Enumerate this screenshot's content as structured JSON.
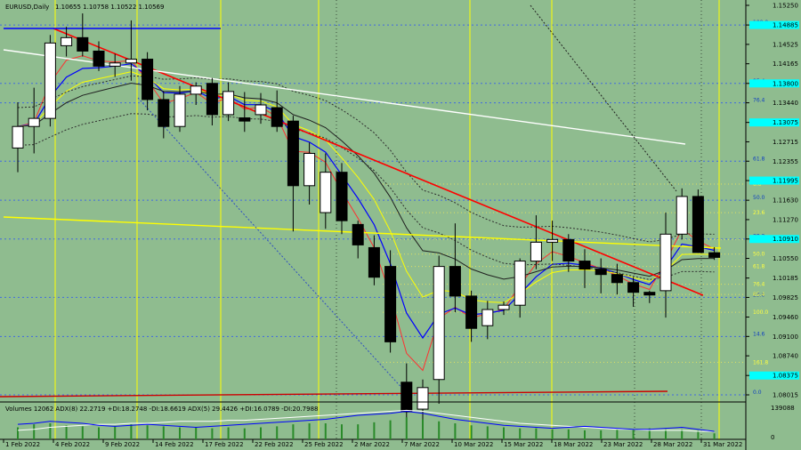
{
  "header": {
    "symbol_info": "EURUSD,Daily",
    "ohlc": "1.10655 1.10758 1.10522 1.10569"
  },
  "volumes_panel": {
    "info": "Volumes 12062  ADX(8) 22.2719 +DI:18.2748 -DI:18.6619  ADX(5) 29.4426 +DI:16.0789 -DI:20.7988",
    "scale_top": "139088",
    "scale_bottom": "0"
  },
  "colors": {
    "background": "#8fbc8f",
    "bull_candle": "#ffffff",
    "bear_candle": "#000000",
    "trend_red": "#ff0000",
    "trend_white": "#ffffff",
    "trend_yellow": "#ffff00",
    "ma_red": "#ff3030",
    "ma_blue": "#0000ff",
    "ma_yellow": "#ffff00",
    "ma_black": "#202020",
    "grid_blue": "#4169e1",
    "current_price_box": "#00ffff"
  },
  "chart_data": {
    "type": "candlestick",
    "title": "EURUSD,Daily",
    "y_ticks": [
      "1.15250",
      "1.14885",
      "1.14525",
      "1.14165",
      "1.13800",
      "1.13440",
      "1.13075",
      "1.12715",
      "1.12355",
      "1.11995",
      "1.11630",
      "1.11270",
      "1.10910",
      "1.10550",
      "1.10185",
      "1.09825",
      "1.09460",
      "1.09100",
      "1.08740",
      "1.08375",
      "1.08015"
    ],
    "highlighted_labels": [
      "1.14885",
      "1.13800",
      "1.13075",
      "1.11995",
      "1.10910",
      "1.10569",
      "1.08375"
    ],
    "current_price": "1.10569",
    "x_ticks": [
      "1 Feb 2022",
      "4 Feb 2022",
      "9 Feb 2022",
      "14 Feb 2022",
      "17 Feb 2022",
      "22 Feb 2022",
      "25 Feb 2022",
      "2 Mar 2022",
      "7 Mar 2022",
      "10 Mar 2022",
      "15 Mar 2022",
      "18 Mar 2022",
      "23 Mar 2022",
      "28 Mar 2022",
      "31 Mar 2022"
    ],
    "candles": [
      {
        "o": 1.126,
        "h": 1.1345,
        "l": 1.1215,
        "c": 1.13
      },
      {
        "o": 1.13,
        "h": 1.1372,
        "l": 1.125,
        "c": 1.1315
      },
      {
        "o": 1.1315,
        "h": 1.147,
        "l": 1.13,
        "c": 1.1455
      },
      {
        "o": 1.145,
        "h": 1.1485,
        "l": 1.143,
        "c": 1.1465
      },
      {
        "o": 1.1465,
        "h": 1.151,
        "l": 1.143,
        "c": 1.144
      },
      {
        "o": 1.144,
        "h": 1.1458,
        "l": 1.1403,
        "c": 1.1412
      },
      {
        "o": 1.1412,
        "h": 1.1435,
        "l": 1.1392,
        "c": 1.1418
      },
      {
        "o": 1.1418,
        "h": 1.1497,
        "l": 1.1385,
        "c": 1.1425
      },
      {
        "o": 1.1425,
        "h": 1.1438,
        "l": 1.133,
        "c": 1.135
      },
      {
        "o": 1.135,
        "h": 1.1365,
        "l": 1.1278,
        "c": 1.13
      },
      {
        "o": 1.13,
        "h": 1.1375,
        "l": 1.129,
        "c": 1.136
      },
      {
        "o": 1.136,
        "h": 1.1382,
        "l": 1.134,
        "c": 1.1375
      },
      {
        "o": 1.138,
        "h": 1.139,
        "l": 1.1302,
        "c": 1.1322
      },
      {
        "o": 1.1322,
        "h": 1.1382,
        "l": 1.131,
        "c": 1.1365
      },
      {
        "o": 1.1316,
        "h": 1.1364,
        "l": 1.129,
        "c": 1.131
      },
      {
        "o": 1.1322,
        "h": 1.1362,
        "l": 1.1305,
        "c": 1.134
      },
      {
        "o": 1.1335,
        "h": 1.1367,
        "l": 1.129,
        "c": 1.13
      },
      {
        "o": 1.131,
        "h": 1.132,
        "l": 1.1105,
        "c": 1.119
      },
      {
        "o": 1.119,
        "h": 1.127,
        "l": 1.1155,
        "c": 1.125
      },
      {
        "o": 1.114,
        "h": 1.125,
        "l": 1.111,
        "c": 1.1215
      },
      {
        "o": 1.1215,
        "h": 1.1232,
        "l": 1.11,
        "c": 1.1125
      },
      {
        "o": 1.1118,
        "h": 1.1125,
        "l": 1.1055,
        "c": 1.108
      },
      {
        "o": 1.1075,
        "h": 1.1098,
        "l": 1.1005,
        "c": 1.102
      },
      {
        "o": 1.104,
        "h": 1.107,
        "l": 1.088,
        "c": 1.09
      },
      {
        "o": 1.0825,
        "h": 1.086,
        "l": 1.075,
        "c": 1.077
      },
      {
        "o": 1.0775,
        "h": 1.083,
        "l": 1.0755,
        "c": 1.0815
      },
      {
        "o": 1.083,
        "h": 1.106,
        "l": 1.0785,
        "c": 1.104
      },
      {
        "o": 1.104,
        "h": 1.112,
        "l": 1.0955,
        "c": 1.0985
      },
      {
        "o": 1.0985,
        "h": 1.0995,
        "l": 1.09,
        "c": 1.0925
      },
      {
        "o": 1.093,
        "h": 1.0976,
        "l": 1.0905,
        "c": 1.096
      },
      {
        "o": 1.096,
        "h": 1.0975,
        "l": 1.095,
        "c": 1.0968
      },
      {
        "o": 1.0968,
        "h": 1.1055,
        "l": 1.0945,
        "c": 1.105
      },
      {
        "o": 1.105,
        "h": 1.1135,
        "l": 1.1035,
        "c": 1.1085
      },
      {
        "o": 1.1085,
        "h": 1.1125,
        "l": 1.105,
        "c": 1.109
      },
      {
        "o": 1.109,
        "h": 1.11,
        "l": 1.103,
        "c": 1.105
      },
      {
        "o": 1.105,
        "h": 1.1072,
        "l": 1.1,
        "c": 1.1035
      },
      {
        "o": 1.1035,
        "h": 1.1055,
        "l": 1.099,
        "c": 1.1025
      },
      {
        "o": 1.1025,
        "h": 1.1045,
        "l": 1.0988,
        "c": 1.101
      },
      {
        "o": 1.101,
        "h": 1.102,
        "l": 1.0965,
        "c": 1.0992
      },
      {
        "o": 1.0992,
        "h": 1.0995,
        "l": 1.0972,
        "c": 1.0987
      },
      {
        "o": 1.0995,
        "h": 1.114,
        "l": 1.0945,
        "c": 1.11
      },
      {
        "o": 1.11,
        "h": 1.1185,
        "l": 1.109,
        "c": 1.117
      },
      {
        "o": 1.117,
        "h": 1.1183,
        "l": 1.1065,
        "c": 1.1066
      },
      {
        "o": 1.10655,
        "h": 1.10758,
        "l": 1.10522,
        "c": 1.10569
      }
    ],
    "volume_histogram": [
      1.2,
      1.5,
      1.6,
      1.4,
      1.3,
      1.2,
      1.3,
      1.5,
      1.4,
      1.3,
      1.2,
      1.2,
      1.1,
      1.2,
      1.1,
      1.2,
      1.3,
      1.5,
      1.6,
      1.6,
      1.5,
      1.5,
      1.7,
      1.9,
      2.2,
      2.0,
      1.8,
      1.6,
      1.4,
      1.3,
      1.2,
      1.1,
      1.1,
      1.0,
      1.0,
      0.9,
      0.9,
      1.0,
      1.0,
      1.1,
      1.0,
      1.0,
      0.9,
      0.6
    ],
    "adx_line": [
      0.9,
      1.0,
      1.2,
      1.3,
      1.4,
      1.5,
      1.5,
      1.6,
      1.6,
      1.7,
      1.8,
      1.8,
      1.8,
      1.9,
      1.9,
      2.0,
      2.1,
      2.2,
      2.3,
      2.4,
      2.5,
      2.6,
      2.7,
      2.8,
      2.9,
      2.8,
      2.6,
      2.4,
      2.2,
      2.0,
      1.8,
      1.6,
      1.5,
      1.4,
      1.3,
      1.2,
      1.1,
      1.0,
      1.0,
      0.9,
      0.9,
      0.9,
      0.8,
      0.8
    ],
    "di_line": [
      1.5,
      1.6,
      1.8,
      1.7,
      1.6,
      1.4,
      1.3,
      1.4,
      1.5,
      1.4,
      1.3,
      1.2,
      1.3,
      1.4,
      1.5,
      1.6,
      1.7,
      1.8,
      1.9,
      2.0,
      2.2,
      2.4,
      2.5,
      2.6,
      2.8,
      2.6,
      2.3,
      2.0,
      1.8,
      1.6,
      1.4,
      1.3,
      1.2,
      1.1,
      1.2,
      1.3,
      1.2,
      1.1,
      1.0,
      1.0,
      1.1,
      1.2,
      1.0,
      0.8
    ],
    "fib_labels": [
      {
        "text": "100.0",
        "price": 1.14885
      },
      {
        "text": "85.4",
        "price": 1.138
      },
      {
        "text": "76.4",
        "price": 1.1344
      },
      {
        "text": "61.8",
        "price": 1.12355
      },
      {
        "text": "50.0",
        "price": 1.1163
      },
      {
        "text": "38.2",
        "price": 1.1091
      },
      {
        "text": "23.6",
        "price": 1.09825
      },
      {
        "text": "14.6",
        "price": 1.091
      },
      {
        "text": "0.0",
        "price": 1.08015
      }
    ],
    "small_yellow_labels": [
      {
        "text": "0.0",
        "price": 1.1193
      },
      {
        "text": "23.6",
        "price": 1.114
      },
      {
        "text": "38.2",
        "price": 1.109
      },
      {
        "text": "50.0",
        "price": 1.1063
      },
      {
        "text": "61.8",
        "price": 1.104
      },
      {
        "text": "76.4",
        "price": 1.1007
      },
      {
        "text": "85.4",
        "price": 1.0988
      },
      {
        "text": "100.0",
        "price": 1.0955
      },
      {
        "text": "161.8",
        "price": 1.0862
      }
    ],
    "ylim": [
      1.078,
      1.153
    ]
  }
}
